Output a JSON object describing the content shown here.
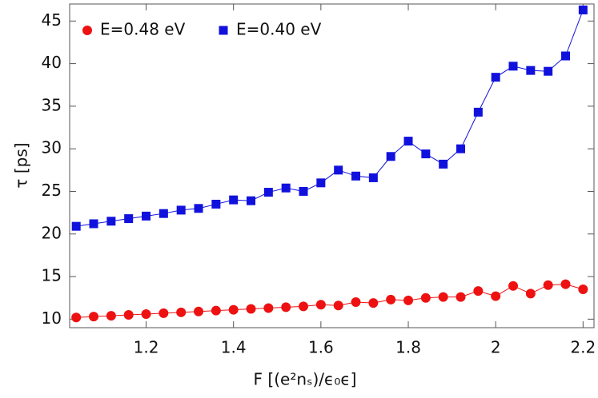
{
  "chart_data": {
    "type": "line",
    "x": [
      1.04,
      1.08,
      1.12,
      1.16,
      1.2,
      1.24,
      1.28,
      1.32,
      1.36,
      1.4,
      1.44,
      1.48,
      1.52,
      1.56,
      1.6,
      1.64,
      1.68,
      1.72,
      1.76,
      1.8,
      1.84,
      1.88,
      1.92,
      1.96,
      2.0,
      2.04,
      2.08,
      2.12,
      2.16,
      2.2
    ],
    "series": [
      {
        "name": "E=0.48 eV",
        "color": "#ee1111",
        "marker": "circle",
        "values": [
          10.2,
          10.3,
          10.4,
          10.5,
          10.6,
          10.7,
          10.8,
          10.9,
          11.0,
          11.1,
          11.2,
          11.3,
          11.4,
          11.5,
          11.7,
          11.6,
          12.0,
          11.9,
          12.3,
          12.2,
          12.5,
          12.6,
          12.6,
          13.3,
          12.7,
          13.9,
          13.0,
          14.0,
          14.1,
          13.5
        ]
      },
      {
        "name": "E=0.40 eV",
        "color": "#1111dd",
        "marker": "square",
        "values": [
          20.9,
          21.2,
          21.5,
          21.8,
          22.1,
          22.4,
          22.8,
          23.0,
          23.5,
          24.0,
          23.9,
          24.9,
          25.4,
          25.0,
          26.0,
          27.5,
          26.8,
          26.6,
          29.1,
          30.9,
          29.4,
          28.2,
          30.0,
          34.3,
          38.4,
          39.7,
          39.2,
          39.1,
          40.9,
          46.3
        ]
      }
    ],
    "xlim": [
      1.025,
      2.225
    ],
    "xticks": [
      1.2,
      1.4,
      1.6,
      1.8,
      2.0,
      2.2
    ],
    "ylim": [
      9,
      47
    ],
    "yticks": [
      10,
      15,
      20,
      25,
      30,
      35,
      40,
      45
    ],
    "xlabel": "F  [(e²nₛ)/ϵ₀ϵ]",
    "ylabel": "τ  [ps]",
    "legend": "top-left"
  }
}
